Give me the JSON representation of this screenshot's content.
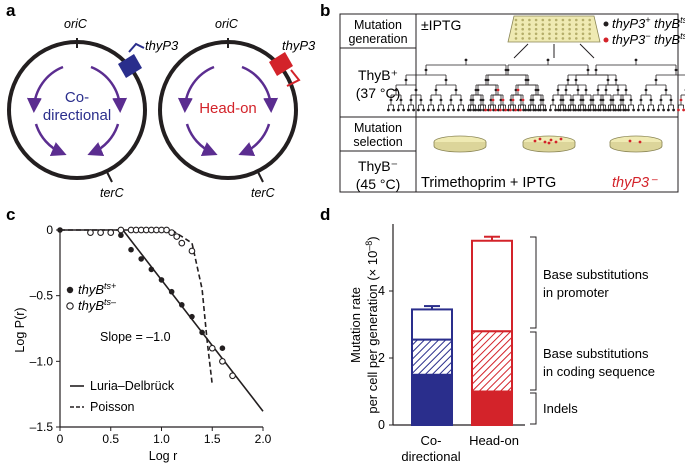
{
  "colors": {
    "blue": "#2a2e8c",
    "red": "#d3232a",
    "purple": "#5b2d90",
    "dish": "#efeab3",
    "text": "#231f20"
  },
  "panel_a": {
    "label": "a",
    "left": {
      "ori": "oriC",
      "ter": "terC",
      "gene": "thyP3",
      "mode_line1": "Co-",
      "mode_line2": "directional"
    },
    "right": {
      "ori": "oriC",
      "ter": "terC",
      "gene": "thyP3",
      "mode": "Head-on"
    }
  },
  "panel_b": {
    "label": "b",
    "row1_label_line1": "Mutation",
    "row1_label_line2": "generation",
    "condition": "±IPTG",
    "legend_black_pre": "thyP3",
    "legend_black_sup1": "+",
    "legend_black_mid": " thyB",
    "legend_black_sup2": "ts",
    "legend_red_pre": "thyP3",
    "legend_red_sup1": "−",
    "legend_red_mid": " thyB",
    "legend_red_sup2": "ts",
    "thyb_plus_line1": "ThyB⁺",
    "thyb_plus_line2": "(37 °C)",
    "row2_label_line1": "Mutation",
    "row2_label_line2": "selection",
    "thyb_minus_line1": "ThyB⁻",
    "thyb_minus_line2": "(45 °C)",
    "selection_label": "Trimethoprim + IPTG",
    "selection_result": "thyP3⁻"
  },
  "panel_c": {
    "label": "c",
    "ylabel": "Log P(r)",
    "xlabel": "Log r",
    "xticks": [
      "0",
      "0.5",
      "1.0",
      "1.5",
      "2.0"
    ],
    "yticks": [
      "0",
      "–0.5",
      "–1.0",
      "–1.5"
    ],
    "legend_filled_pre": "thyB",
    "legend_filled_sup": "ts+",
    "legend_open_pre": "thyB",
    "legend_open_sup": "ts–",
    "slope_text": "Slope = –1.0",
    "line_solid": "Luria–Delbrück",
    "line_dashed": "Poisson"
  },
  "panel_d": {
    "label": "d",
    "ylabel_line1": "Mutation rate",
    "ylabel_line2": "per cell per generation (× 10",
    "ylabel_exp": "–8",
    "yticks": [
      "0",
      "2",
      "4"
    ],
    "cat1_line1": "Co-",
    "cat1_line2": "directional",
    "cat2": "Head-on",
    "bracket1_line1": "Base substitutions",
    "bracket1_line2": "in promoter",
    "bracket2_line1": "Base substitutions",
    "bracket2_line2": "in coding sequence",
    "bracket3": "Indels"
  },
  "chart_data": [
    {
      "type": "scatter",
      "xlabel": "Log r",
      "ylabel": "Log P(r)",
      "xlim": [
        0,
        2.0
      ],
      "ylim": [
        -1.5,
        0
      ],
      "series": [
        {
          "name": "thyB ts+",
          "x": [
            0,
            0.3,
            0.4,
            0.5,
            0.6,
            0.7,
            0.8,
            0.9,
            1.0,
            1.1,
            1.2,
            1.3,
            1.4,
            1.5,
            1.6
          ],
          "y": [
            0,
            -0.02,
            -0.02,
            -0.02,
            -0.04,
            -0.15,
            -0.22,
            -0.3,
            -0.38,
            -0.47,
            -0.57,
            -0.66,
            -0.78,
            -0.9,
            -0.9
          ]
        },
        {
          "name": "thyB ts–",
          "x": [
            0.3,
            0.4,
            0.5,
            0.6,
            0.7,
            0.75,
            0.8,
            0.85,
            0.9,
            0.95,
            1.0,
            1.05,
            1.1,
            1.15,
            1.2,
            1.3,
            1.5,
            1.6,
            1.7
          ],
          "y": [
            -0.02,
            -0.02,
            -0.02,
            0,
            0,
            0,
            0,
            0,
            0,
            0,
            0,
            0,
            -0.02,
            -0.05,
            -0.1,
            -0.16,
            -0.9,
            -1.0,
            -1.11
          ]
        }
      ],
      "lines": [
        {
          "name": "Luria–Delbrück",
          "x": [
            0,
            0.62,
            2.0
          ],
          "y": [
            0,
            0,
            -1.38
          ]
        },
        {
          "name": "Poisson",
          "x": [
            0,
            1.1,
            1.3,
            1.4,
            1.45,
            1.5
          ],
          "y": [
            0,
            0,
            -0.1,
            -0.45,
            -0.85,
            -1.18
          ]
        }
      ],
      "annotation": "Slope = –1.0"
    },
    {
      "type": "bar",
      "ylabel": "Mutation rate per cell per generation (× 10–8)",
      "ylim": [
        0,
        6
      ],
      "categories": [
        "Co-directional",
        "Head-on"
      ],
      "series": [
        {
          "name": "Indels",
          "values": [
            1.5,
            1.0
          ]
        },
        {
          "name": "Base substitutions in coding sequence",
          "values": [
            1.05,
            1.8
          ]
        },
        {
          "name": "Base substitutions in promoter",
          "values": [
            0.9,
            2.7
          ]
        }
      ],
      "totals": [
        3.45,
        5.5
      ],
      "errors": [
        0.1,
        0.12
      ],
      "colors": [
        "#2a2e8c",
        "#d3232a"
      ]
    }
  ]
}
